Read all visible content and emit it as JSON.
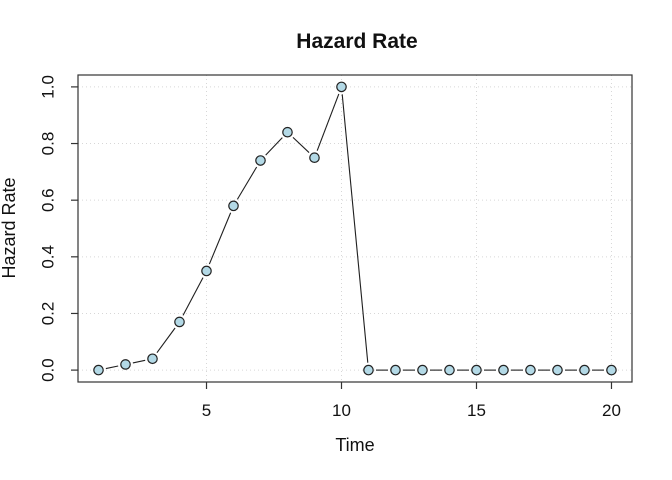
{
  "page": {
    "background": "#ffffff"
  },
  "chart_data": {
    "type": "line",
    "title": "Hazard Rate",
    "xlabel": "Time",
    "ylabel": "Hazard Rate",
    "x": [
      1,
      2,
      3,
      4,
      5,
      6,
      7,
      8,
      9,
      10,
      11,
      12,
      13,
      14,
      15,
      16,
      17,
      18,
      19,
      20
    ],
    "y": [
      0.0,
      0.02,
      0.04,
      0.17,
      0.35,
      0.58,
      0.74,
      0.84,
      0.75,
      1.0,
      0.0,
      0.0,
      0.0,
      0.0,
      0.0,
      0.0,
      0.0,
      0.0,
      0.0,
      0.0
    ],
    "xlim": [
      0.24,
      20.76
    ],
    "ylim": [
      -0.042,
      1.042
    ],
    "xticks": {
      "values": [
        5,
        10,
        15,
        20
      ],
      "labels": [
        "5",
        "10",
        "15",
        "20"
      ]
    },
    "yticks": {
      "values": [
        0,
        0.2,
        0.4,
        0.6,
        0.8,
        1.0
      ],
      "labels": [
        "0.0",
        "0.2",
        "0.4",
        "0.6",
        "0.8",
        "1.0"
      ]
    },
    "grid": true,
    "legend": "none",
    "style": {
      "marker": "filled-circle",
      "marker_fill": "#b3d9e6",
      "marker_stroke": "#222222",
      "line_color": "#1f1f1f",
      "line_mode": "segments-with-gaps",
      "grid_color": "#d7d7d7",
      "grid_style": "dotted",
      "axis_color": "#333333",
      "text_color": "#111111"
    }
  }
}
